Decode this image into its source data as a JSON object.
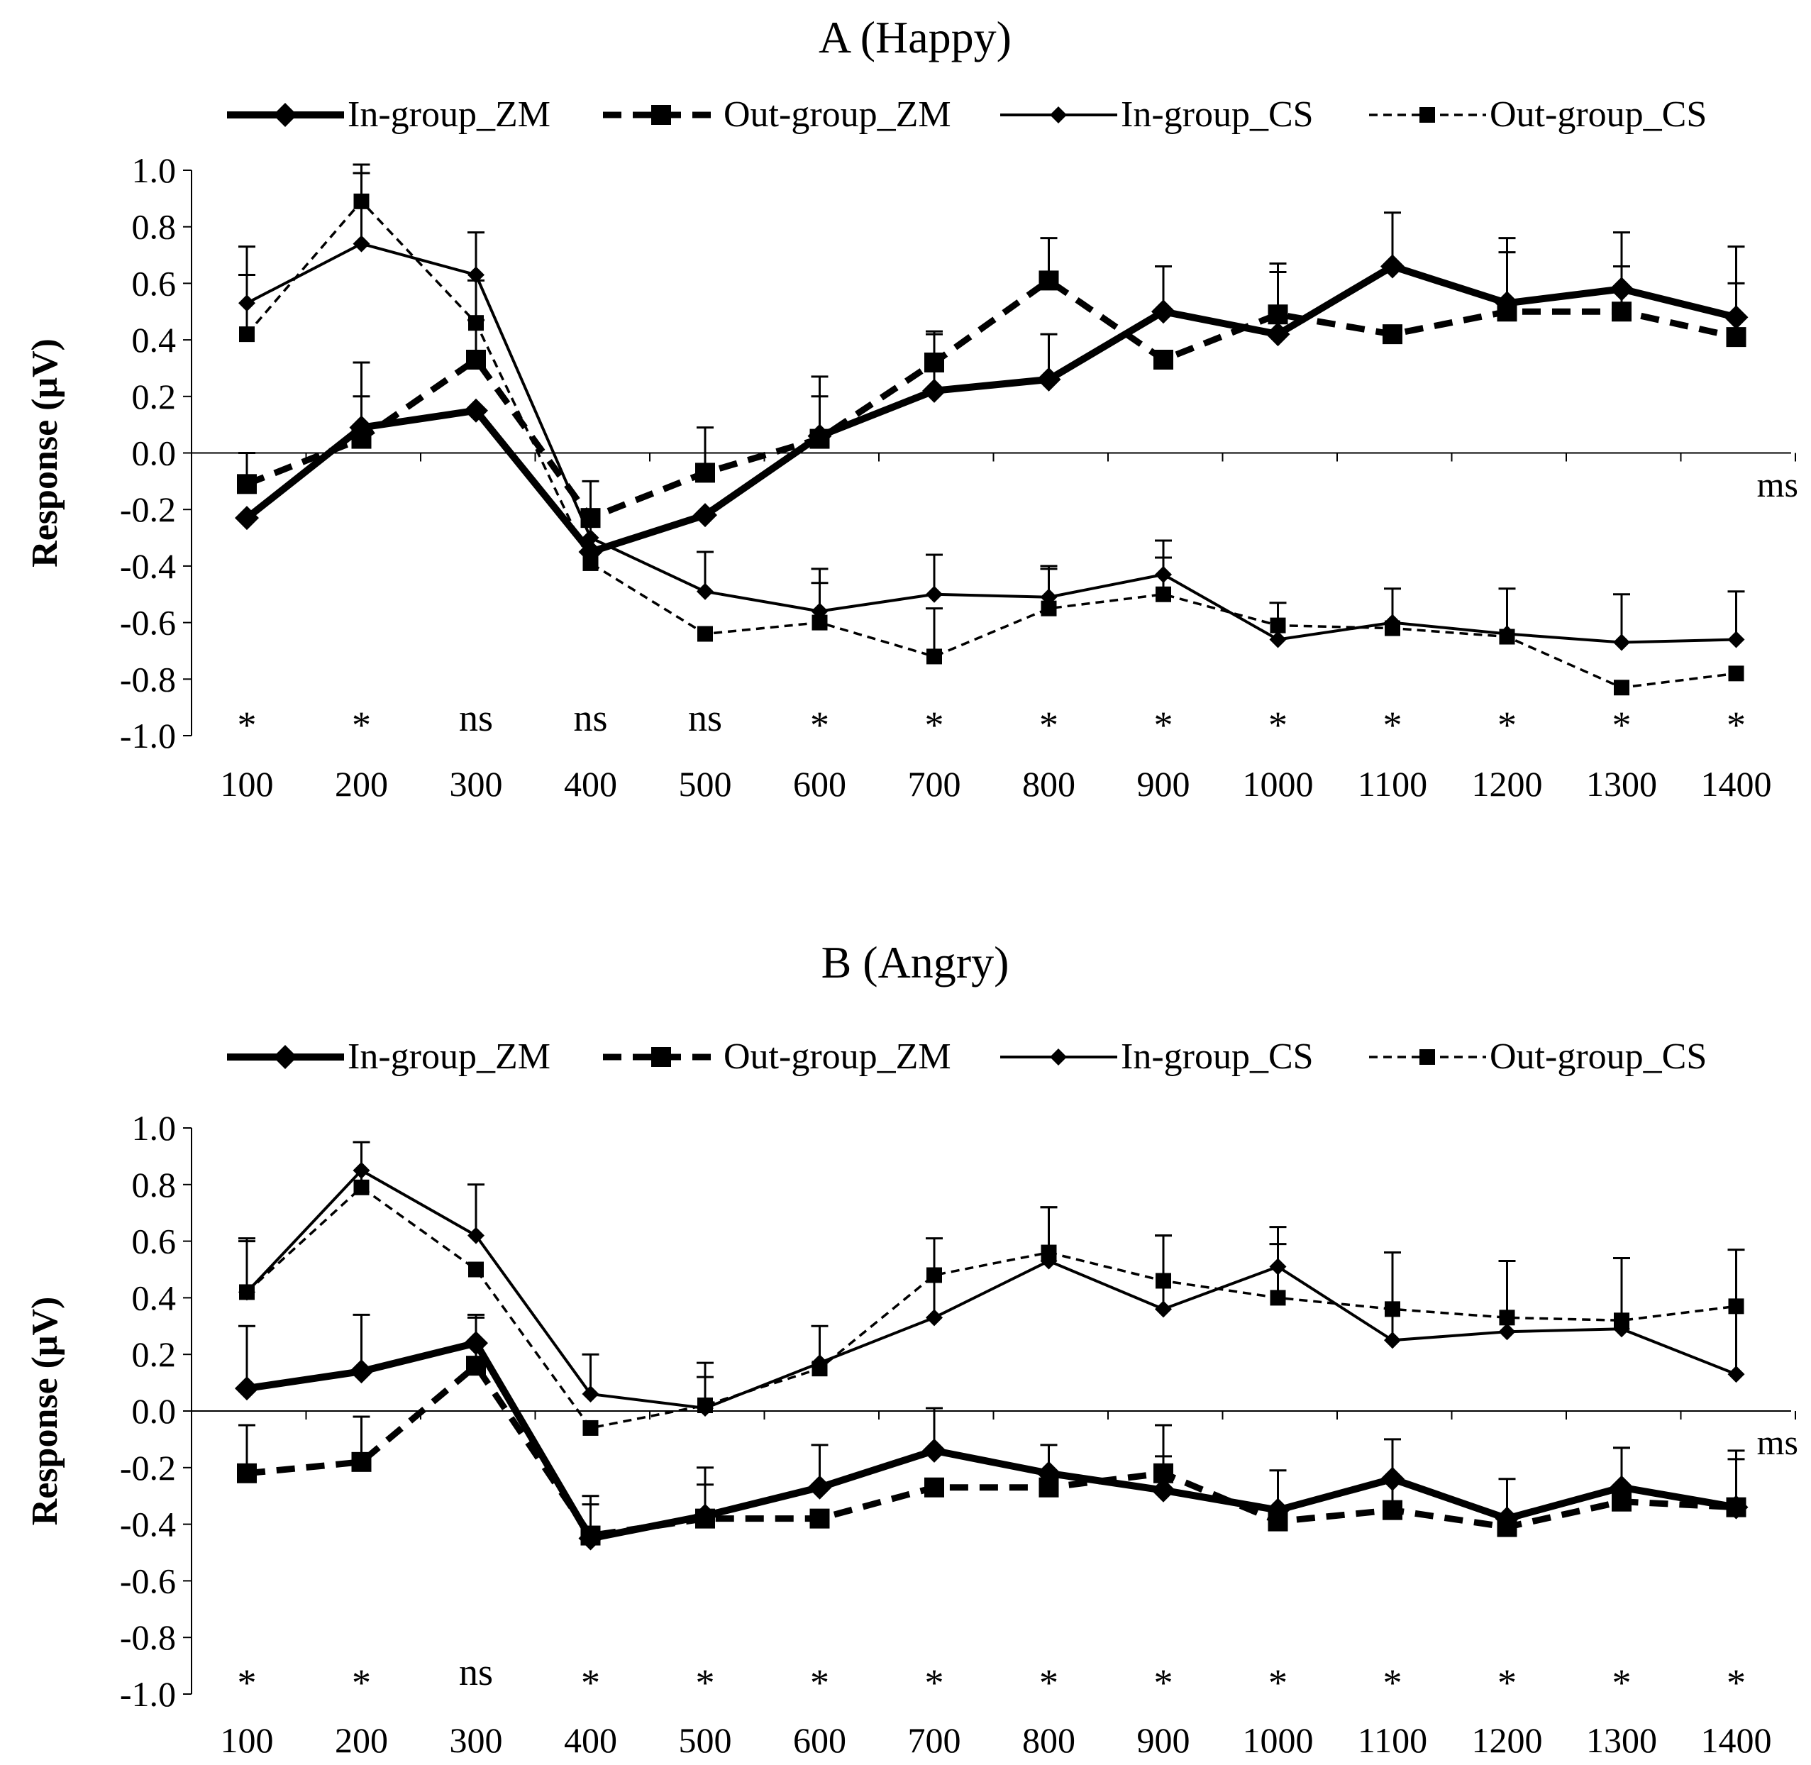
{
  "chart_data": [
    {
      "type": "line",
      "title": "A (Happy)",
      "ylabel": "Response (μV)",
      "xunit": "ms",
      "ylim": [
        -1.0,
        1.0
      ],
      "yticks": [
        "1.0",
        "0.8",
        "0.6",
        "0.4",
        "0.2",
        "0.0",
        "-0.2",
        "-0.4",
        "-0.6",
        "-0.8",
        "-1.0"
      ],
      "categories": [
        "100",
        "200",
        "300",
        "400",
        "500",
        "600",
        "700",
        "800",
        "900",
        "1000",
        "1100",
        "1200",
        "1300",
        "1400"
      ],
      "legend": [
        "In-group_ZM",
        "Out-group_ZM",
        "In-group_CS",
        "Out-group_CS"
      ],
      "significance": [
        "*",
        "*",
        "ns",
        "ns",
        "ns",
        "*",
        "*",
        "*",
        "*",
        "*",
        "*",
        "*",
        "*",
        "*"
      ],
      "series": [
        {
          "name": "In-group_ZM",
          "values": [
            -0.23,
            0.09,
            0.15,
            -0.35,
            -0.22,
            0.06,
            0.22,
            0.26,
            0.5,
            0.42,
            0.66,
            0.53,
            0.58,
            0.48
          ],
          "errors": [
            0.0,
            0.23,
            0.0,
            0.0,
            0.0,
            0.14,
            0.21,
            0.16,
            0.16,
            0.25,
            0.19,
            0.23,
            0.2,
            0.25
          ]
        },
        {
          "name": "Out-group_ZM",
          "values": [
            -0.11,
            0.05,
            0.33,
            -0.23,
            -0.07,
            0.05,
            0.32,
            0.61,
            0.33,
            0.49,
            0.42,
            0.5,
            0.5,
            0.41
          ],
          "errors": [
            0.11,
            0.15,
            0.14,
            0.13,
            0.16,
            0.22,
            0.1,
            0.15,
            0.0,
            0.15,
            0.0,
            0.21,
            0.16,
            0.19
          ]
        },
        {
          "name": "In-group_CS",
          "values": [
            0.53,
            0.74,
            0.63,
            -0.3,
            -0.49,
            -0.56,
            -0.5,
            -0.51,
            -0.43,
            -0.66,
            -0.6,
            -0.64,
            -0.67,
            -0.66
          ],
          "errors": [
            0.2,
            0.28,
            0.15,
            0.0,
            0.14,
            0.15,
            0.14,
            0.11,
            0.12,
            0.0,
            0.12,
            0.16,
            0.17,
            0.17
          ]
        },
        {
          "name": "Out-group_CS",
          "values": [
            0.42,
            0.89,
            0.46,
            -0.39,
            -0.64,
            -0.6,
            -0.72,
            -0.55,
            -0.5,
            -0.61,
            -0.62,
            -0.65,
            -0.83,
            -0.78
          ],
          "errors": [
            0.21,
            0.1,
            0.15,
            0.13,
            0.0,
            0.14,
            0.17,
            0.14,
            0.13,
            0.08,
            0.0,
            0.0,
            0.0,
            0.0
          ]
        }
      ]
    },
    {
      "type": "line",
      "title": "B (Angry)",
      "ylabel": "Response (μV)",
      "xunit": "ms",
      "ylim": [
        -1.0,
        1.0
      ],
      "yticks": [
        "1.0",
        "0.8",
        "0.6",
        "0.4",
        "0.2",
        "0.0",
        "-0.2",
        "-0.4",
        "-0.6",
        "-0.8",
        "-1.0"
      ],
      "categories": [
        "100",
        "200",
        "300",
        "400",
        "500",
        "600",
        "700",
        "800",
        "900",
        "1000",
        "1100",
        "1200",
        "1300",
        "1400"
      ],
      "legend": [
        "In-group_ZM",
        "Out-group_ZM",
        "In-group_CS",
        "Out-group_CS"
      ],
      "significance": [
        "*",
        "*",
        "ns",
        "*",
        "*",
        "*",
        "*",
        "*",
        "*",
        "*",
        "*",
        "*",
        "*",
        "*"
      ],
      "series": [
        {
          "name": "In-group_ZM",
          "values": [
            0.08,
            0.14,
            0.24,
            -0.45,
            -0.37,
            -0.27,
            -0.14,
            -0.22,
            -0.28,
            -0.35,
            -0.24,
            -0.38,
            -0.27,
            -0.34
          ],
          "errors": [
            0.22,
            0.2,
            0.1,
            0.15,
            0.17,
            0.15,
            0.15,
            0.1,
            0.12,
            0.14,
            0.14,
            0.14,
            0.14,
            0.17
          ]
        },
        {
          "name": "Out-group_ZM",
          "values": [
            -0.22,
            -0.18,
            0.16,
            -0.44,
            -0.38,
            -0.38,
            -0.27,
            -0.27,
            -0.22,
            -0.39,
            -0.35,
            -0.41,
            -0.32,
            -0.34
          ],
          "errors": [
            0.17,
            0.16,
            0.17,
            0.11,
            0.12,
            0.0,
            0.0,
            0.0,
            0.17,
            0.0,
            0.11,
            0.0,
            0.19,
            0.2
          ]
        },
        {
          "name": "In-group_CS",
          "values": [
            0.42,
            0.85,
            0.62,
            0.06,
            0.01,
            0.17,
            0.33,
            0.53,
            0.36,
            0.51,
            0.25,
            0.28,
            0.29,
            0.13
          ],
          "errors": [
            0.18,
            0.1,
            0.18,
            0.14,
            0.11,
            0.13,
            0.28,
            0.19,
            0.26,
            0.14,
            0.31,
            0.25,
            0.25,
            0.44
          ]
        },
        {
          "name": "Out-group_CS",
          "values": [
            0.42,
            0.79,
            0.5,
            -0.06,
            0.02,
            0.15,
            0.48,
            0.56,
            0.46,
            0.4,
            0.36,
            0.33,
            0.32,
            0.37
          ],
          "errors": [
            0.19,
            0.16,
            0.0,
            0.0,
            0.15,
            0.0,
            0.0,
            0.16,
            0.16,
            0.19,
            0.0,
            0.2,
            0.22,
            0.0
          ]
        }
      ]
    }
  ]
}
